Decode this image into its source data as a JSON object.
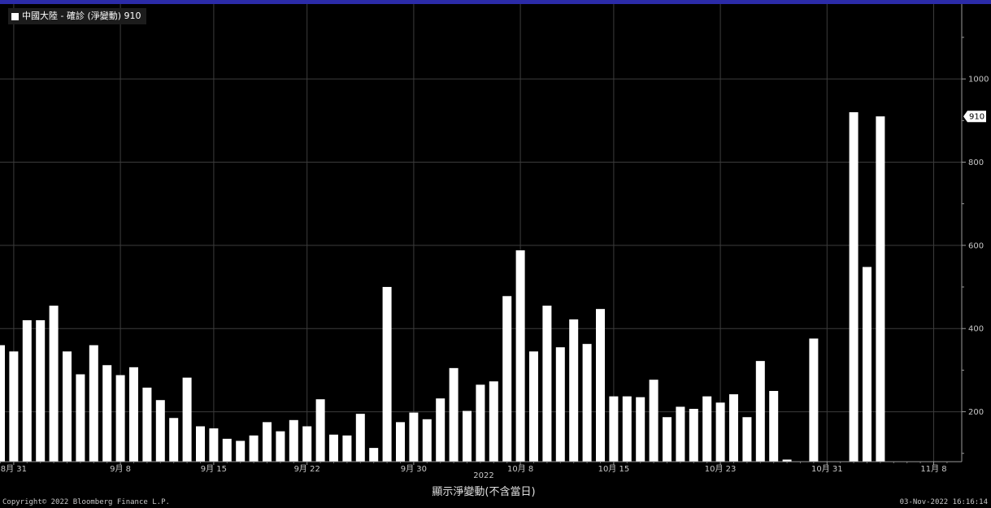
{
  "chart_data": {
    "type": "bar",
    "legend": {
      "label": "中國大陸 - 確診 (淨變動) 910",
      "position": "top-left"
    },
    "series": [
      {
        "name": "中國大陸 - 確診 (淨變動)",
        "color": "#ffffff",
        "values": [
          360,
          345,
          420,
          420,
          455,
          345,
          290,
          360,
          312,
          288,
          307,
          258,
          228,
          185,
          282,
          165,
          160,
          135,
          130,
          143,
          175,
          153,
          180,
          165,
          230,
          145,
          143,
          195,
          113,
          500,
          175,
          198,
          182,
          232,
          305,
          202,
          265,
          273,
          478,
          588,
          345,
          455,
          355,
          422,
          363,
          447,
          237,
          237,
          235,
          277,
          187,
          212,
          207,
          237,
          222,
          242,
          187,
          322,
          250,
          85,
          0,
          376,
          0,
          0,
          920,
          548,
          910
        ]
      }
    ],
    "start_date": "2022-08-30",
    "x_ticks": [
      "8月 31",
      "9月 8",
      "9月 15",
      "9月 22",
      "9月 30",
      "10月 8",
      "10月 15",
      "10月 23",
      "10月 31",
      "11月 8"
    ],
    "year_label": "2022",
    "y_ticks": [
      200,
      400,
      600,
      800,
      1000
    ],
    "ylim": [
      80,
      1180
    ],
    "last_value_label": "910",
    "grid": true,
    "footnote": "顯示淨變動(不含當日)"
  },
  "footer": {
    "copyright": "Copyright© 2022 Bloomberg Finance L.P.",
    "timestamp": "03-Nov-2022 16:16:14"
  }
}
